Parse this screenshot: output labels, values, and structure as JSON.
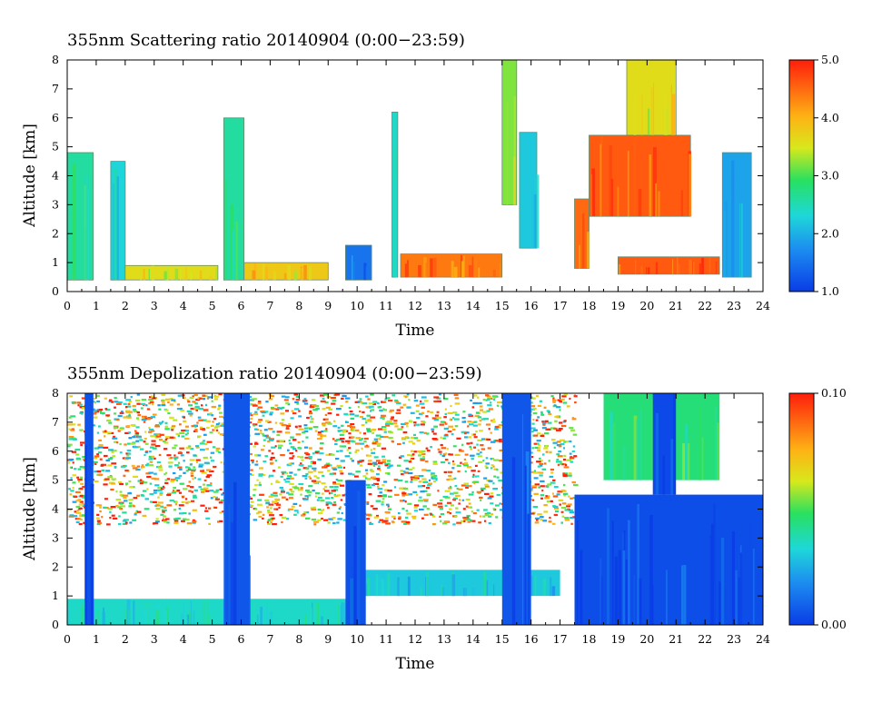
{
  "chart_data": [
    {
      "type": "heatmap",
      "title": "355nm Scattering ratio  20140904 (0:00−23:59)",
      "xlabel": "Time",
      "ylabel": "Altitude [km]",
      "xlim": [
        0,
        24
      ],
      "ylim": [
        0,
        8
      ],
      "xticks": [
        "0",
        "1",
        "2",
        "3",
        "4",
        "5",
        "6",
        "7",
        "8",
        "9",
        "10",
        "11",
        "12",
        "13",
        "14",
        "15",
        "16",
        "17",
        "18",
        "19",
        "20",
        "21",
        "22",
        "23",
        "24"
      ],
      "yticks": [
        "0",
        "1",
        "2",
        "3",
        "4",
        "5",
        "6",
        "7",
        "8"
      ],
      "colorbar": {
        "min": 1.0,
        "max": 5.0,
        "ticks": [
          "1.0",
          "2.0",
          "3.0",
          "4.0",
          "5.0"
        ]
      },
      "colors": {
        "low": "#1040e0",
        "mid": "#20d060",
        "high": "#ff3010"
      },
      "features": [
        {
          "t": [
            0.0,
            0.9
          ],
          "alt": [
            0.4,
            4.8
          ],
          "value": 2.6
        },
        {
          "t": [
            1.5,
            2.0
          ],
          "alt": [
            0.4,
            4.5
          ],
          "value": 2.3
        },
        {
          "t": [
            2.0,
            5.2
          ],
          "alt": [
            0.4,
            0.9
          ],
          "value": 3.6
        },
        {
          "t": [
            5.4,
            6.1
          ],
          "alt": [
            0.4,
            6.0
          ],
          "value": 2.6
        },
        {
          "t": [
            6.1,
            9.0
          ],
          "alt": [
            0.4,
            1.0
          ],
          "value": 3.8
        },
        {
          "t": [
            9.6,
            10.5
          ],
          "alt": [
            0.4,
            1.6
          ],
          "value": 1.5
        },
        {
          "t": [
            11.2,
            11.4
          ],
          "alt": [
            0.5,
            6.2
          ],
          "value": 2.4
        },
        {
          "t": [
            11.5,
            15.0
          ],
          "alt": [
            0.5,
            1.3
          ],
          "value": 4.4
        },
        {
          "t": [
            15.0,
            15.5
          ],
          "alt": [
            3.0,
            8.0
          ],
          "value": 3.2
        },
        {
          "t": [
            15.6,
            16.2
          ],
          "alt": [
            1.5,
            5.5
          ],
          "value": 2.2
        },
        {
          "t": [
            17.5,
            18.0
          ],
          "alt": [
            0.8,
            3.2
          ],
          "value": 4.5
        },
        {
          "t": [
            18.0,
            21.5
          ],
          "alt": [
            2.6,
            5.4
          ],
          "value": 4.6
        },
        {
          "t": [
            19.3,
            21.0
          ],
          "alt": [
            5.4,
            8.0
          ],
          "value": 3.6
        },
        {
          "t": [
            19.0,
            22.5
          ],
          "alt": [
            0.6,
            1.2
          ],
          "value": 4.6
        },
        {
          "t": [
            22.6,
            23.6
          ],
          "alt": [
            0.5,
            4.8
          ],
          "value": 1.9
        }
      ]
    },
    {
      "type": "heatmap",
      "title": "355nm Depolization ratio  20140904 (0:00−23:59)",
      "xlabel": "Time",
      "ylabel": "Altitude [km]",
      "xlim": [
        0,
        24
      ],
      "ylim": [
        0,
        8
      ],
      "xticks": [
        "0",
        "1",
        "2",
        "3",
        "4",
        "5",
        "6",
        "7",
        "8",
        "9",
        "10",
        "11",
        "12",
        "13",
        "14",
        "15",
        "16",
        "17",
        "18",
        "19",
        "20",
        "21",
        "22",
        "23",
        "24"
      ],
      "yticks": [
        "0",
        "1",
        "2",
        "3",
        "4",
        "5",
        "6",
        "7",
        "8"
      ],
      "colorbar": {
        "min": 0.0,
        "max": 0.1,
        "ticks": [
          "0.00",
          "0.10"
        ]
      },
      "colors": {
        "low": "#1040e0",
        "mid": "#20d060",
        "high": "#ff3010"
      },
      "features": [
        {
          "t": [
            0.0,
            17.5
          ],
          "alt": [
            3.5,
            8.0
          ],
          "value": 0.06
        },
        {
          "t": [
            0.0,
            10.0
          ],
          "alt": [
            0.0,
            0.9
          ],
          "value": 0.035
        },
        {
          "t": [
            10.0,
            17.0
          ],
          "alt": [
            1.0,
            1.9
          ],
          "value": 0.03
        },
        {
          "t": [
            17.5,
            24.0
          ],
          "alt": [
            0.0,
            4.5
          ],
          "value": 0.004
        },
        {
          "t": [
            18.5,
            22.5
          ],
          "alt": [
            5.0,
            8.0
          ],
          "value": 0.045
        },
        {
          "t": [
            0.6,
            0.9
          ],
          "alt": [
            0.0,
            8.0
          ],
          "value": 0.005
        },
        {
          "t": [
            5.4,
            6.3
          ],
          "alt": [
            0.0,
            8.0
          ],
          "value": 0.006
        },
        {
          "t": [
            9.6,
            10.3
          ],
          "alt": [
            0.0,
            5.0
          ],
          "value": 0.005
        },
        {
          "t": [
            15.0,
            16.0
          ],
          "alt": [
            0.0,
            8.0
          ],
          "value": 0.006
        },
        {
          "t": [
            20.2,
            21.0
          ],
          "alt": [
            4.5,
            8.0
          ],
          "value": 0.003
        }
      ]
    }
  ]
}
